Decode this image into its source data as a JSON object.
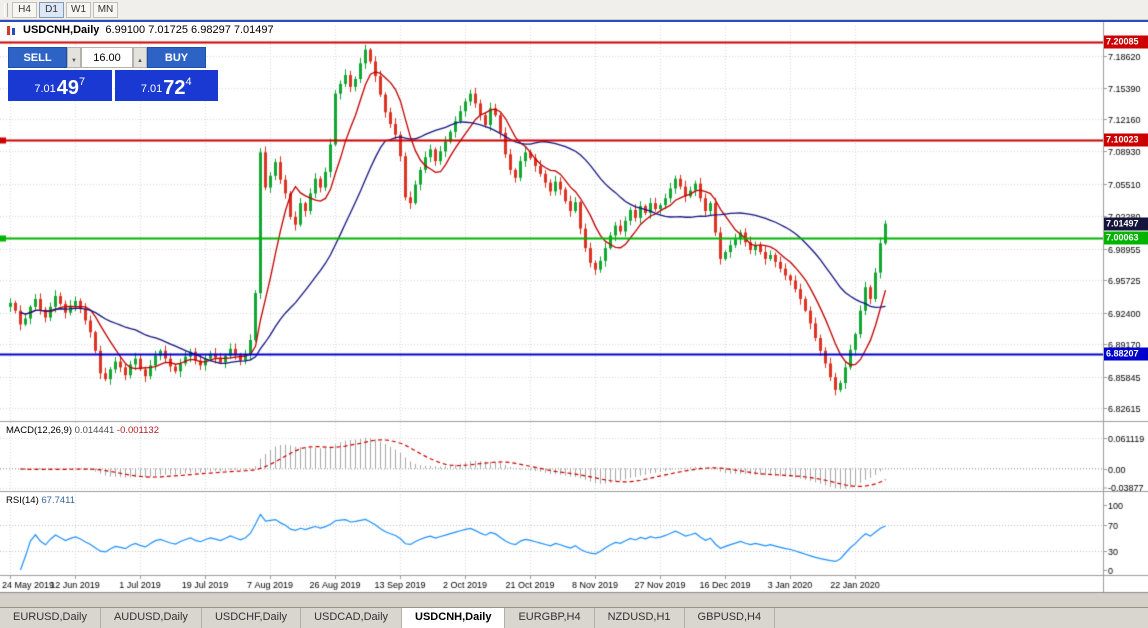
{
  "toolbar": {
    "periods": [
      {
        "label": "H4",
        "active": false
      },
      {
        "label": "D1",
        "active": true
      },
      {
        "label": "W1",
        "active": false
      },
      {
        "label": "MN",
        "active": false
      }
    ]
  },
  "chart_header": {
    "title": "USDCNH,Daily",
    "ohlc": "6.99100 7.01725 6.98297 7.01497"
  },
  "one_click": {
    "sell_label": "SELL",
    "buy_label": "BUY",
    "volume": "16.00",
    "sell_price": {
      "prefix": "7.01",
      "big": "49",
      "sup": "7"
    },
    "buy_price": {
      "prefix": "7.01",
      "big": "72",
      "sup": "4"
    }
  },
  "price_axis": {
    "ticks": [
      "7.18620",
      "7.15390",
      "7.12160",
      "7.08930",
      "7.05510",
      "7.02280",
      "6.98955",
      "6.95725",
      "6.92400",
      "6.89170",
      "6.85845",
      "6.82615"
    ],
    "current": {
      "label": "7.01497",
      "color": "#15153c"
    }
  },
  "price_lines": [
    {
      "label": "7.20085",
      "value": 7.20085,
      "color": "#cc0000",
      "marker": false
    },
    {
      "label": "7.10023",
      "value": 7.10023,
      "color": "#cc0000",
      "marker": true
    },
    {
      "label": "7.00063",
      "value": 7.00063,
      "color": "#00b400",
      "marker": true
    },
    {
      "label": "6.88207",
      "value": 6.88207,
      "color": "#0000cc",
      "marker": false
    }
  ],
  "macd": {
    "label": "MACD(12,26,9)",
    "value": "0.014441",
    "signal": "-0.001132",
    "axis": [
      "0.061119",
      "0.00",
      "-0.03877"
    ],
    "colors": {
      "histogram": "#a6a6a6",
      "signal": "#cc0000"
    }
  },
  "rsi": {
    "label": "RSI(14)",
    "value": "67.7411",
    "axis": [
      "100",
      "70",
      "30",
      "0"
    ],
    "levels": [
      70,
      30
    ],
    "color": "#1e90ff"
  },
  "tabs": {
    "items": [
      {
        "label": "EURUSD,Daily",
        "active": false
      },
      {
        "label": "AUDUSD,Daily",
        "active": false
      },
      {
        "label": "USDCHF,Daily",
        "active": false
      },
      {
        "label": "USDCAD,Daily",
        "active": false
      },
      {
        "label": "USDCNH,Daily",
        "active": true
      },
      {
        "label": "EURGBP,H4",
        "active": false
      },
      {
        "label": "NZDUSD,H1",
        "active": false
      },
      {
        "label": "GBPUSD,H4",
        "active": false
      }
    ]
  },
  "chart_data": {
    "type": "candlestick",
    "symbol": "USDCNH",
    "timeframe": "Daily",
    "title": "USDCNH,Daily",
    "date_labels": [
      "24 May 2019",
      "12 Jun 2019",
      "1 Jul 2019",
      "19 Jul 2019",
      "7 Aug 2019",
      "26 Aug 2019",
      "13 Sep 2019",
      "2 Oct 2019",
      "21 Oct 2019",
      "8 Nov 2019",
      "27 Nov 2019",
      "16 Dec 2019",
      "3 Jan 2020",
      "22 Jan 2020"
    ],
    "bars_per_label": 13,
    "y_range": [
      6.8142,
      7.207
    ],
    "closes": [
      6.934,
      6.926,
      6.912,
      6.918,
      6.93,
      6.938,
      6.927,
      6.919,
      6.93,
      6.941,
      6.933,
      6.924,
      6.931,
      6.936,
      6.928,
      6.916,
      6.904,
      6.885,
      6.862,
      6.856,
      6.866,
      6.874,
      6.868,
      6.86,
      6.871,
      6.877,
      6.866,
      6.859,
      6.87,
      6.88,
      6.885,
      6.877,
      6.869,
      6.864,
      6.872,
      6.879,
      6.884,
      6.875,
      6.87,
      6.877,
      6.882,
      6.878,
      6.873,
      6.88,
      6.887,
      6.881,
      6.875,
      6.881,
      6.896,
      6.944,
      7.088,
      7.052,
      7.064,
      7.078,
      7.06,
      7.046,
      7.022,
      7.014,
      7.036,
      7.028,
      7.046,
      7.061,
      7.052,
      7.068,
      7.096,
      7.148,
      7.158,
      7.167,
      7.155,
      7.163,
      7.179,
      7.193,
      7.181,
      7.166,
      7.147,
      7.129,
      7.117,
      7.106,
      7.084,
      7.042,
      7.036,
      7.055,
      7.07,
      7.083,
      7.091,
      7.079,
      7.089,
      7.099,
      7.109,
      7.12,
      7.13,
      7.14,
      7.148,
      7.138,
      7.126,
      7.116,
      7.133,
      7.126,
      7.108,
      7.086,
      7.07,
      7.062,
      7.079,
      7.088,
      7.082,
      7.074,
      7.066,
      7.057,
      7.048,
      7.058,
      7.05,
      7.038,
      7.028,
      7.037,
      7.01,
      6.99,
      6.975,
      6.968,
      6.977,
      6.99,
      7.003,
      7.013,
      7.007,
      7.018,
      7.029,
      7.021,
      7.033,
      7.026,
      7.036,
      7.03,
      7.034,
      7.041,
      7.051,
      7.061,
      7.053,
      7.043,
      7.049,
      7.056,
      7.041,
      7.028,
      7.036,
      7.006,
      6.979,
      6.986,
      6.993,
      6.999,
      7.006,
      6.996,
      6.988,
      6.993,
      6.986,
      6.979,
      6.983,
      6.976,
      6.969,
      6.962,
      6.957,
      6.948,
      6.938,
      6.926,
      6.913,
      6.898,
      6.885,
      6.872,
      6.858,
      6.845,
      6.852,
      6.868,
      6.886,
      6.902,
      6.926,
      6.95,
      6.938,
      6.965,
      6.995,
      7.01497
    ],
    "ma_periods": {
      "fast": 8,
      "slow": 26
    },
    "colors": {
      "up": "#12a633",
      "down": "#dd3222",
      "ma_fast": "#c00000",
      "ma_slow": "#151580",
      "grid": "#d9d9d9"
    }
  }
}
